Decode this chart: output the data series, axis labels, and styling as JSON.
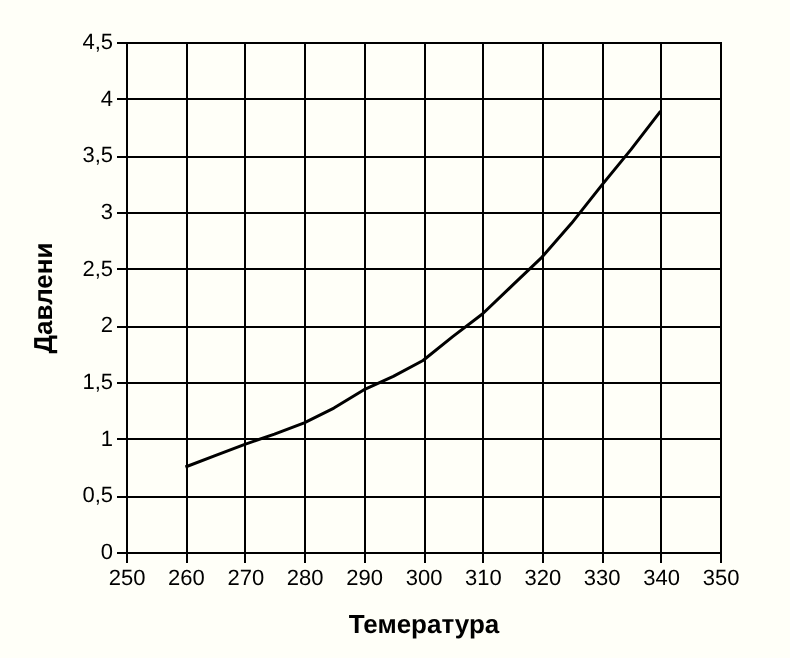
{
  "chart_data": {
    "type": "line",
    "xlabel": "Темература",
    "ylabel": "Давлени",
    "x": [
      260,
      265,
      270,
      275,
      280,
      285,
      290,
      295,
      300,
      305,
      310,
      315,
      320,
      325,
      330,
      335,
      340
    ],
    "series": [
      {
        "color": "#000000",
        "values": [
          0.75,
          0.85,
          0.95,
          1.04,
          1.14,
          1.27,
          1.43,
          1.55,
          1.69,
          1.9,
          2.1,
          2.35,
          2.6,
          2.9,
          3.23,
          3.55,
          3.89
        ]
      }
    ],
    "xlim": [
      250,
      350
    ],
    "xticks": [
      250,
      260,
      270,
      280,
      290,
      300,
      310,
      320,
      330,
      340,
      350
    ],
    "ylim": [
      0,
      4.5
    ],
    "yticks": [
      0,
      {
        "value": 0.5,
        "label": "0,5"
      },
      1,
      {
        "value": 1.5,
        "label": "1,5"
      },
      2,
      {
        "value": 2.5,
        "label": "2,5"
      },
      3,
      {
        "value": 3.5,
        "label": "3,5"
      },
      4,
      {
        "value": 4.5,
        "label": "4,5"
      }
    ],
    "grid": true,
    "marker": "none",
    "line_style": "solid"
  }
}
